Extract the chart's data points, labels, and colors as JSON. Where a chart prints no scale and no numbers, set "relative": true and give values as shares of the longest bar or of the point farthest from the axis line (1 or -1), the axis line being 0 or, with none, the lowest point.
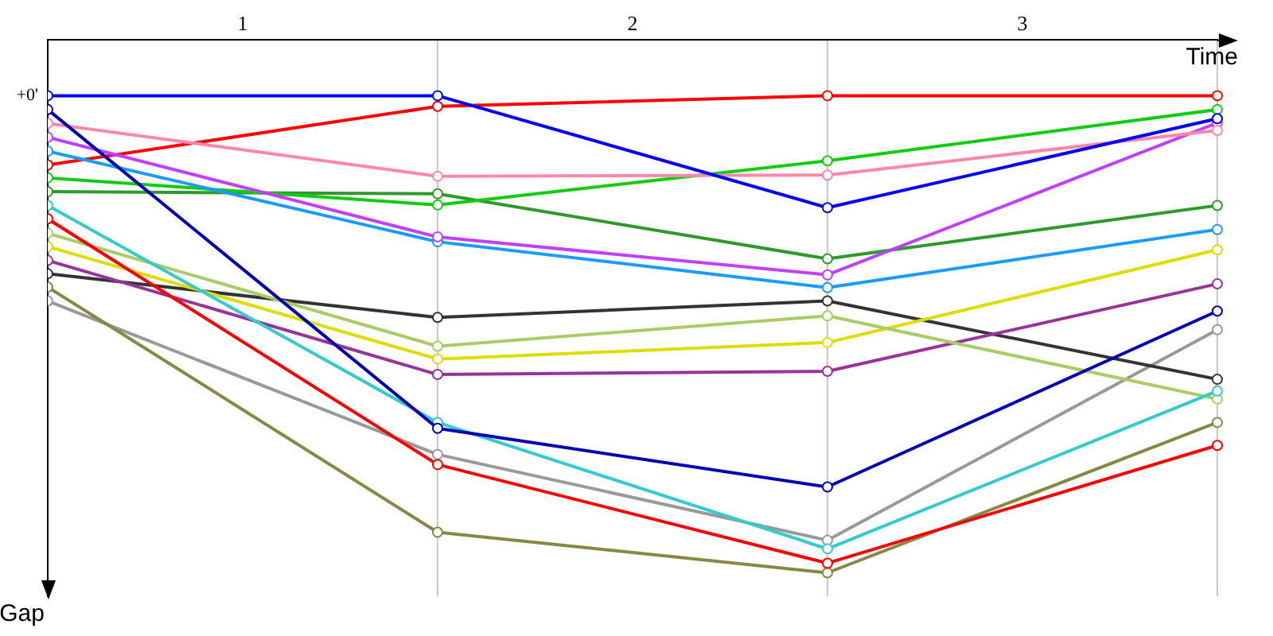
{
  "chart_data": {
    "type": "line",
    "xlabel": "Time",
    "ylabel": "Gap",
    "relative": true,
    "tick_labels": false,
    "marker": "circle",
    "line_style": "solid",
    "grid": "x",
    "categories": [
      null,
      null,
      null,
      null
    ],
    "annotations": [
      "+0'",
      "1",
      "2",
      "3"
    ],
    "series": [
      {
        "color": "#0000ff",
        "values": [
          -0.105,
          -0.105,
          -0.315,
          -0.148
        ]
      },
      {
        "color": "#0000b4",
        "values": [
          -0.131,
          -0.729,
          -0.839,
          -0.509
        ]
      },
      {
        "color": "#ff88aa",
        "values": [
          -0.157,
          -0.256,
          -0.254,
          -0.17
        ]
      },
      {
        "color": "#c040ff",
        "values": [
          -0.183,
          -0.37,
          -0.441,
          -0.156
        ]
      },
      {
        "color": "#1a9cff",
        "values": [
          -0.209,
          -0.379,
          -0.465,
          -0.356
        ]
      },
      {
        "color": "#ff0000",
        "values": [
          -0.235,
          -0.125,
          -0.105,
          -0.105
        ]
      },
      {
        "color": "#11cc11",
        "values": [
          -0.259,
          -0.31,
          -0.227,
          -0.131
        ]
      },
      {
        "color": "#2e9a2e",
        "values": [
          -0.285,
          -0.289,
          -0.411,
          -0.311
        ]
      },
      {
        "color": "#33cccc",
        "values": [
          -0.311,
          -0.718,
          -0.955,
          -0.659
        ]
      },
      {
        "color": "#ff0000",
        "values": [
          -0.336,
          -0.797,
          -0.982,
          -0.761
        ]
      },
      {
        "color": "#aacc66",
        "values": [
          -0.363,
          -0.575,
          -0.518,
          -0.674
        ]
      },
      {
        "color": "#dddd00",
        "values": [
          -0.388,
          -0.599,
          -0.568,
          -0.394
        ]
      },
      {
        "color": "#993399",
        "values": [
          -0.414,
          -0.628,
          -0.622,
          -0.458
        ]
      },
      {
        "color": "#333333",
        "values": [
          -0.439,
          -0.521,
          -0.49,
          -0.637
        ]
      },
      {
        "color": "#888844",
        "values": [
          -0.464,
          -0.924,
          -1,
          -0.718
        ]
      },
      {
        "color": "#999999",
        "values": [
          -0.49,
          -0.778,
          -0.939,
          -0.544
        ]
      }
    ]
  }
}
